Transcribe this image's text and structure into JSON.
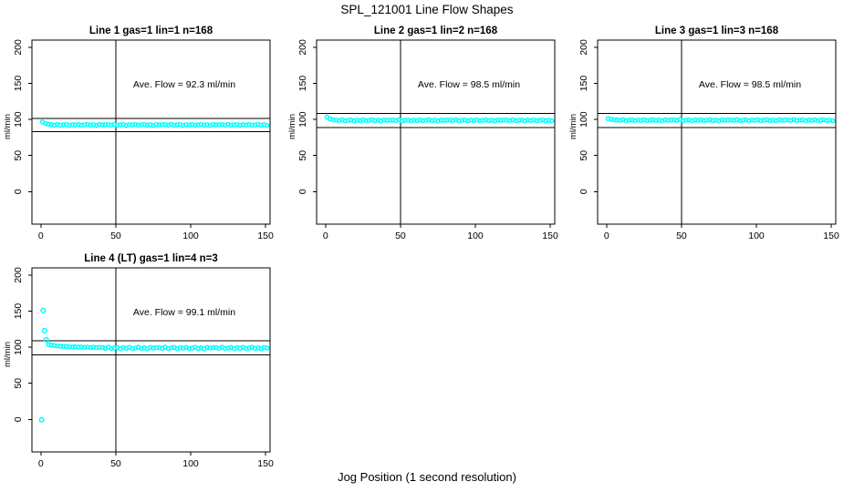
{
  "page": {
    "title": "SPL_121001  Line Flow Shapes",
    "xlabel": "Jog Position (1 second resolution)"
  },
  "chart_data": [
    {
      "type": "scatter",
      "title": "Line 1 gas=1 lin=1 n=168",
      "annotation": "Ave. Flow =  92.3  ml/min",
      "ave_flow_ml_min": 92.3,
      "n": 168,
      "ylabel": "ml/min",
      "xticks": [
        0,
        50,
        100,
        150
      ],
      "yticks": [
        0,
        50,
        100,
        150,
        200
      ],
      "xlim": [
        -6,
        153
      ],
      "ylim": [
        -45,
        210
      ],
      "ref_hlines": [
        101.5,
        83.1
      ],
      "ref_vline": 50,
      "marker_color": "#00FFFF",
      "x_start": 1,
      "x_step": 2,
      "y": [
        96.5,
        94.5,
        93.5,
        92.9,
        92.2,
        93.3,
        91.9,
        92.6,
        93.0,
        91.8,
        92.8,
        92.3,
        93.1,
        92.0,
        92.5,
        93.2,
        92.1,
        92.7,
        91.7,
        93.0,
        92.4,
        92.8,
        92.9,
        92.2,
        93.3,
        91.9,
        92.6,
        93.0,
        91.8,
        92.8,
        92.3,
        93.1,
        92.0,
        92.5,
        93.2,
        92.1,
        92.7,
        91.7,
        93.0,
        92.4,
        92.8,
        92.9,
        92.2,
        93.3,
        91.9,
        92.6,
        93.0,
        91.8,
        92.8,
        92.3,
        93.1,
        92.0,
        92.5,
        93.2,
        92.1,
        92.7,
        91.7,
        93.0,
        92.4,
        92.8,
        92.9,
        92.2,
        93.3,
        91.9,
        92.6,
        93.0,
        91.8,
        92.8,
        92.3,
        93.1,
        92.0,
        92.5,
        93.2,
        92.1,
        92.7,
        91.7
      ]
    },
    {
      "type": "scatter",
      "title": "Line 2 gas=1 lin=2 n=168",
      "annotation": "Ave. Flow =  98.5  ml/min",
      "ave_flow_ml_min": 98.5,
      "n": 168,
      "ylabel": "ml/min",
      "xticks": [
        0,
        50,
        100,
        150
      ],
      "yticks": [
        0,
        50,
        100,
        150,
        200
      ],
      "xlim": [
        -6,
        153
      ],
      "ylim": [
        -45,
        210
      ],
      "ref_hlines": [
        108.4,
        88.7
      ],
      "ref_vline": 50,
      "marker_color": "#00FFFF",
      "x_start": 1,
      "x_step": 2,
      "y": [
        103.3,
        100.8,
        99.6,
        99.2,
        98.5,
        99.6,
        98.2,
        98.9,
        99.3,
        98.1,
        99.1,
        98.6,
        99.4,
        98.3,
        98.8,
        99.5,
        98.4,
        99.0,
        98.0,
        99.3,
        98.7,
        99.1,
        99.2,
        98.5,
        99.6,
        98.2,
        98.9,
        99.3,
        98.1,
        99.1,
        98.6,
        99.4,
        98.3,
        98.8,
        99.5,
        98.4,
        99.0,
        98.0,
        99.3,
        98.7,
        99.1,
        99.2,
        98.5,
        99.6,
        98.2,
        98.9,
        99.3,
        98.1,
        99.1,
        98.6,
        99.4,
        98.3,
        98.8,
        99.5,
        98.4,
        99.0,
        98.0,
        99.3,
        98.7,
        99.1,
        99.2,
        98.5,
        99.6,
        98.2,
        98.9,
        99.3,
        98.1,
        99.1,
        98.6,
        99.4,
        98.3,
        98.8,
        99.5,
        98.4,
        99.0,
        98.0
      ]
    },
    {
      "type": "scatter",
      "title": "Line 3 gas=1 lin=3 n=168",
      "annotation": "Ave. Flow =  98.5  ml/min",
      "ave_flow_ml_min": 98.5,
      "n": 168,
      "ylabel": "ml/min",
      "xticks": [
        0,
        50,
        100,
        150
      ],
      "yticks": [
        0,
        50,
        100,
        150,
        200
      ],
      "xlim": [
        -6,
        153
      ],
      "ylim": [
        -45,
        210
      ],
      "ref_hlines": [
        108.4,
        88.7
      ],
      "ref_vline": 50,
      "marker_color": "#00FFFF",
      "x_start": 1,
      "x_step": 2,
      "y": [
        101.2,
        100.0,
        99.5,
        99.4,
        98.7,
        99.8,
        98.4,
        99.1,
        99.5,
        98.3,
        99.3,
        98.8,
        99.6,
        98.5,
        99.0,
        99.7,
        98.6,
        99.2,
        98.2,
        99.5,
        98.9,
        99.3,
        99.4,
        98.7,
        99.8,
        98.4,
        99.1,
        99.5,
        98.3,
        99.3,
        98.8,
        99.6,
        98.5,
        99.0,
        99.7,
        98.6,
        99.2,
        98.2,
        99.5,
        98.9,
        99.3,
        99.4,
        98.7,
        99.8,
        98.4,
        99.1,
        99.5,
        98.3,
        99.3,
        98.8,
        99.6,
        98.5,
        99.0,
        99.7,
        98.6,
        99.2,
        98.2,
        99.5,
        98.9,
        99.3,
        99.4,
        98.7,
        99.8,
        98.4,
        99.1,
        99.5,
        98.3,
        99.3,
        98.8,
        99.6,
        98.5,
        99.0,
        99.7,
        98.6,
        99.2,
        98.2
      ]
    },
    {
      "type": "scatter",
      "title": "Line 4 (LT) gas=1 lin=4 n=3",
      "annotation": "Ave. Flow =  99.1  ml/min",
      "ave_flow_ml_min": 99.1,
      "n": 3,
      "ylabel": "ml/min",
      "xticks": [
        0,
        50,
        100,
        150
      ],
      "yticks": [
        0,
        50,
        100,
        150,
        200
      ],
      "xlim": [
        -6,
        153
      ],
      "ylim": [
        -45,
        210
      ],
      "ref_hlines": [
        109.0,
        89.2
      ],
      "ref_vline": 50,
      "marker_color": "#00FFFF",
      "extra_points": [
        [
          0.5,
          -0.5
        ],
        [
          1.5,
          151.0
        ],
        [
          2.5,
          123.0
        ],
        [
          3.5,
          110.5
        ]
      ],
      "x_start": 5,
      "x_step": 2,
      "y": [
        103.8,
        103.0,
        102.4,
        101.9,
        101.5,
        101.2,
        100.9,
        100.7,
        100.4,
        100.6,
        100.1,
        100.3,
        99.8,
        100.2,
        99.6,
        100.0,
        99.4,
        99.9,
        99.6,
        98.6,
        100.1,
        98.2,
        99.1,
        99.7,
        98.0,
        99.4,
        98.7,
        99.8,
        98.3,
        99.0,
        100.0,
        98.4,
        99.3,
        97.9,
        99.7,
        98.9,
        99.4,
        99.6,
        98.6,
        100.1,
        98.2,
        99.1,
        99.7,
        98.0,
        99.4,
        98.7,
        99.8,
        98.3,
        99.0,
        100.0,
        98.4,
        99.3,
        97.9,
        99.7,
        98.9,
        99.4,
        99.6,
        98.6,
        100.1,
        98.2,
        99.1,
        99.7,
        98.0,
        99.4,
        98.7,
        99.8,
        98.3,
        99.0,
        100.0,
        98.4,
        99.3,
        97.9,
        99.7,
        98.9
      ]
    }
  ]
}
